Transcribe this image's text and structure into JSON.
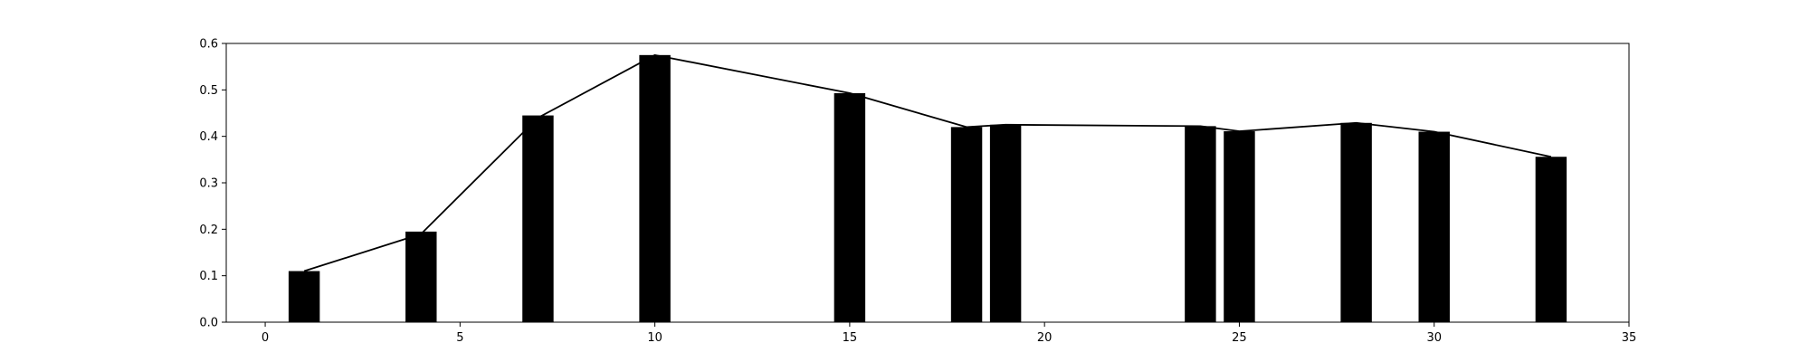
{
  "chart_data": {
    "type": "bar",
    "title": "",
    "xlabel": "",
    "ylabel": "",
    "xlim": [
      -1,
      35
    ],
    "ylim": [
      0,
      0.6
    ],
    "x_ticks": [
      0,
      5,
      10,
      15,
      20,
      25,
      30,
      35
    ],
    "y_ticks": [
      0.0,
      0.1,
      0.2,
      0.3,
      0.4,
      0.5,
      0.6
    ],
    "x_tick_labels": [
      "0",
      "5",
      "10",
      "15",
      "20",
      "25",
      "30",
      "35"
    ],
    "y_tick_labels": [
      "0.0",
      "0.1",
      "0.2",
      "0.3",
      "0.4",
      "0.5",
      "0.6"
    ],
    "bar_width": 0.8,
    "bar_color": "#000000",
    "line_color": "#000000",
    "grid": false,
    "legend": "none",
    "x": [
      1,
      4,
      7,
      10,
      15,
      18,
      19,
      24,
      25,
      28,
      30,
      33
    ],
    "values": [
      0.11,
      0.195,
      0.445,
      0.575,
      0.493,
      0.42,
      0.425,
      0.422,
      0.411,
      0.429,
      0.41,
      0.356
    ],
    "overlay_line": {
      "x": [
        1,
        4,
        7,
        10,
        15,
        18,
        19,
        24,
        25,
        28,
        30,
        33
      ],
      "values": [
        0.11,
        0.19,
        0.44,
        0.575,
        0.493,
        0.42,
        0.425,
        0.422,
        0.411,
        0.429,
        0.41,
        0.356
      ]
    }
  }
}
